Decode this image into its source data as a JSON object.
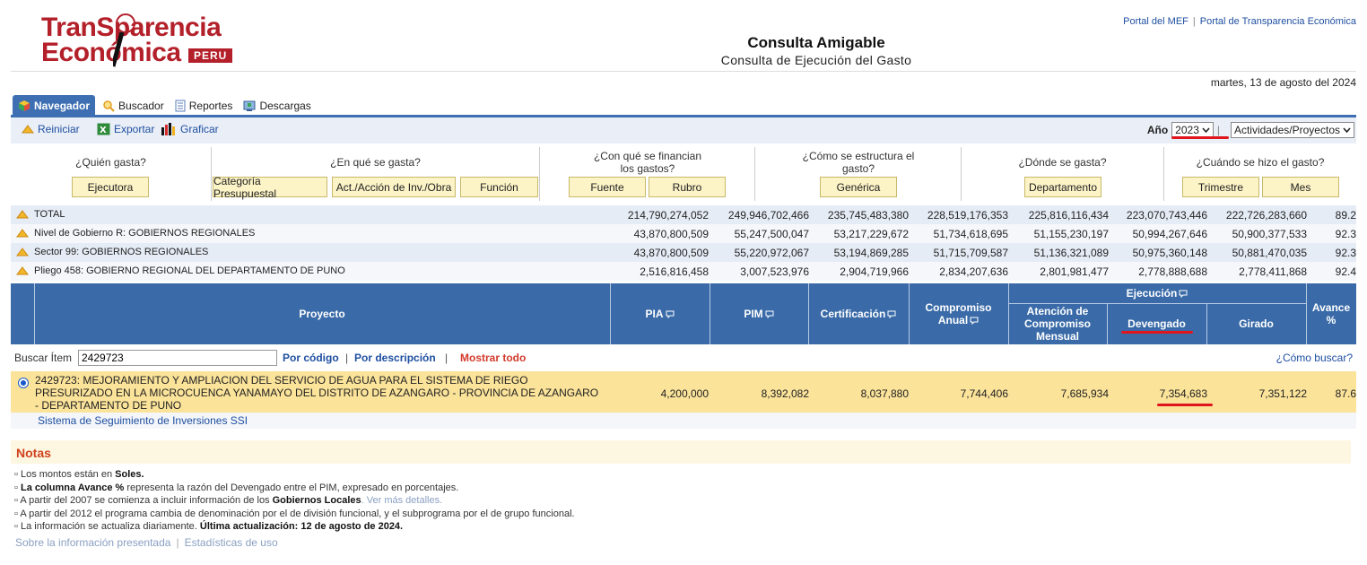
{
  "header": {
    "logo_line1": "TranSparencia",
    "logo_line2": "Económica",
    "logo_badge": "PERU",
    "links": [
      "Portal del MEF",
      "Portal de Transparencia Económica"
    ],
    "title": "Consulta Amigable",
    "subtitle": "Consulta de Ejecución del Gasto",
    "date": "martes, 13 de agosto del 2024"
  },
  "tabs": [
    {
      "label": "Navegador",
      "icon": "cube-icon",
      "active": true
    },
    {
      "label": "Buscador",
      "icon": "search-icon",
      "active": false
    },
    {
      "label": "Reportes",
      "icon": "document-icon",
      "active": false
    },
    {
      "label": "Descargas",
      "icon": "download-icon",
      "active": false
    }
  ],
  "toolbar": {
    "reiniciar": "Reiniciar",
    "exportar": "Exportar",
    "graficar": "Graficar",
    "year_label": "Año",
    "year_value": "2023",
    "type_value": "Actividades/Proyectos"
  },
  "questions": {
    "q1": "¿Quién gasta?",
    "q2": "¿En qué se gasta?",
    "q3": "¿Con qué se financian los gastos?",
    "q4": "¿Cómo se estructura el gasto?",
    "q5": "¿Dónde se gasta?",
    "q6": "¿Cuándo se hizo el gasto?",
    "b_ejecutora": "Ejecutora",
    "b_categoria": "Categoría Presupuestal",
    "b_actividad": "Act./Acción de Inv./Obra",
    "b_funcion": "Función",
    "b_fuente": "Fuente",
    "b_rubro": "Rubro",
    "b_generica": "Genérica",
    "b_departamento": "Departamento",
    "b_trimestre": "Trimestre",
    "b_mes": "Mes"
  },
  "summary": [
    {
      "label": "TOTAL",
      "values": [
        "214,790,274,052",
        "249,946,702,466",
        "235,745,483,380",
        "228,519,176,353",
        "225,816,116,434",
        "223,070,743,446",
        "222,726,283,660",
        "89.2"
      ]
    },
    {
      "label": "Nivel de Gobierno R: GOBIERNOS REGIONALES",
      "values": [
        "43,870,800,509",
        "55,247,500,047",
        "53,217,229,672",
        "51,734,618,695",
        "51,155,230,197",
        "50,994,267,646",
        "50,900,377,533",
        "92.3"
      ]
    },
    {
      "label": "Sector 99: GOBIERNOS REGIONALES",
      "values": [
        "43,870,800,509",
        "55,220,972,067",
        "53,194,869,285",
        "51,715,709,587",
        "51,136,321,089",
        "50,975,360,148",
        "50,881,470,035",
        "92.3"
      ]
    },
    {
      "label": "Pliego 458: GOBIERNO REGIONAL DEL DEPARTAMENTO DE PUNO",
      "values": [
        "2,516,816,458",
        "3,007,523,976",
        "2,904,719,966",
        "2,834,207,636",
        "2,801,981,477",
        "2,778,888,688",
        "2,778,411,868",
        "92.4"
      ]
    }
  ],
  "columns": {
    "proyecto": "Proyecto",
    "pia": "PIA",
    "pim": "PIM",
    "certificacion": "Certificación",
    "compromiso_anual_1": "Compromiso",
    "compromiso_anual_2": "Anual",
    "ejecucion": "Ejecución",
    "atencion_1": "Atención de",
    "atencion_2": "Compromiso",
    "atencion_3": "Mensual",
    "devengado": "Devengado",
    "girado": "Girado",
    "avance_1": "Avance",
    "avance_2": "%"
  },
  "search": {
    "label": "Buscar Ítem",
    "value": "2429723",
    "por_codigo": "Por código",
    "por_descripcion": "Por descripción",
    "mostrar_todo": "Mostrar todo",
    "como_buscar": "¿Cómo buscar?"
  },
  "row": {
    "text_1": "2429723: MEJORAMIENTO Y AMPLIACION DEL SERVICIO DE AGUA PARA EL SISTEMA DE RIEGO",
    "text_2": "PRESURIZADO EN LA MICROCUENCA YANAMAYO DEL DISTRITO DE AZANGARO - PROVINCIA DE AZANGARO",
    "text_3": "- DEPARTAMENTO DE PUNO",
    "values": [
      "4,200,000",
      "8,392,082",
      "8,037,880",
      "7,744,406",
      "7,685,934",
      "7,354,683",
      "7,351,122",
      "87.6"
    ],
    "ssi_link": "Sistema de Seguimiento de Inversiones SSI"
  },
  "notes": {
    "heading": "Notas",
    "n1a": "Los montos están en ",
    "n1b": "Soles.",
    "n2a": "La columna Avance %",
    "n2b": " representa la razón del Devengado entre el PIM, expresado en porcentajes.",
    "n3a": "A partir del 2007 se comienza a incluir información de los ",
    "n3b": "Gobiernos Locales",
    "n3c": ". Ver más detalles.",
    "n4": "A partir del 2012 el programa cambia de denominación por el de división funcional, y el subprograma por el de grupo funcional.",
    "n5a": "La información se actualiza diariamente. ",
    "n5b": "Última actualización: 12 de agosto de 2024.",
    "foot1": "Sobre la información presentada",
    "foot2": "Estadísticas de uso"
  },
  "colors": {
    "accent": "#3a6ba8",
    "highlight_row": "#fbe39a",
    "annotation_red": "#e0161e"
  }
}
